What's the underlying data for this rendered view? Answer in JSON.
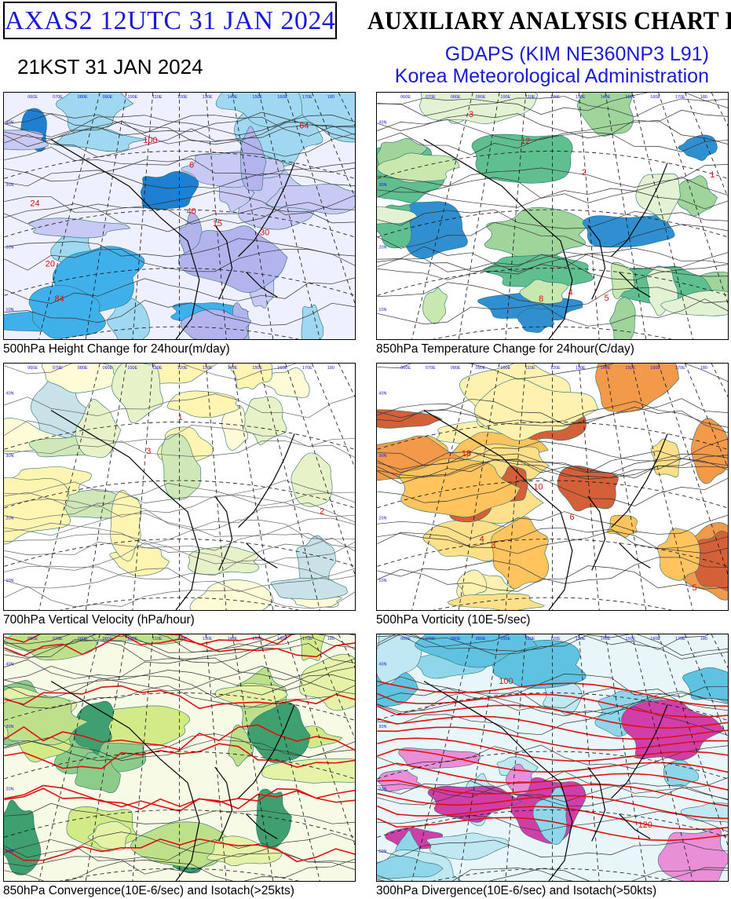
{
  "header": {
    "product_id": "AXAS2  12UTC 31 JAN 2024",
    "local_time": "21KST 31 JAN 2024",
    "chart_title": "AUXILIARY ANALYSIS CHART II",
    "model": "GDAPS (KIM NE360NP3 L91)",
    "agency": "Korea Meteorological Administration"
  },
  "colors": {
    "title_blue": "#1a1ad6",
    "text_black": "#000000",
    "panel_border": "#000000"
  },
  "panels": [
    {
      "caption": "500hPa Height Change for 24hour(m/day)",
      "palette": "blue-purple",
      "contour_labels": [
        "100",
        "15",
        "20",
        "30",
        "40",
        "24",
        "84",
        "64",
        "6"
      ]
    },
    {
      "caption": "850hPa Temperature Change for 24hour(C/day)",
      "palette": "green-blue",
      "contour_labels": [
        "5",
        "4",
        "3",
        "2",
        "1",
        "8",
        "12"
      ]
    },
    {
      "caption": "700hPa Vertical Velocity (hPa/hour)",
      "palette": "yellow-green",
      "contour_labels": [
        "2",
        "1",
        "3"
      ]
    },
    {
      "caption": "500hPa Vorticity (10E-5/sec)",
      "palette": "yellow-orange",
      "contour_labels": [
        "18",
        "10",
        "6",
        "4",
        "5",
        "3"
      ]
    },
    {
      "caption": "850hPa Convergence(10E-6/sec) and Isotach(>25kts)",
      "palette": "green-yellow-red",
      "contour_labels": []
    },
    {
      "caption": "300hPa Divergence(10E-6/sec) and Isotach(>50kts)",
      "palette": "cyan-magenta-red",
      "contour_labels": [
        "120",
        "100"
      ]
    }
  ],
  "map_grid": {
    "lon_labels": [
      "060E",
      "070E",
      "080E",
      "090E",
      "100E",
      "110E",
      "120E",
      "130E",
      "140E",
      "150E",
      "160E",
      "170E",
      "180"
    ],
    "lat_labels": [
      "10N",
      "20N",
      "30N",
      "40N"
    ]
  }
}
